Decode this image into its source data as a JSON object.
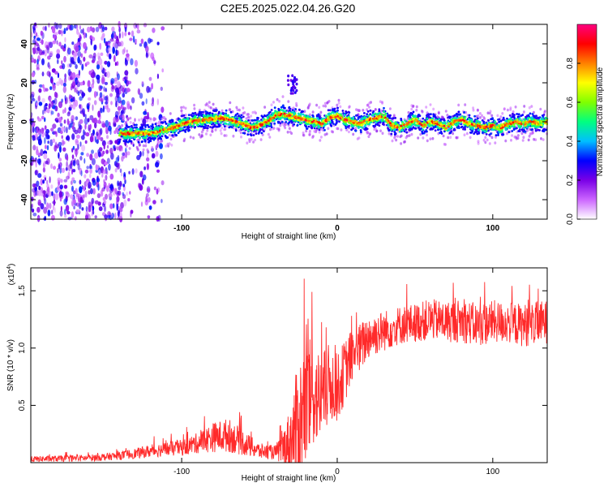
{
  "figure": {
    "title": "C2E5.2025.022.04.26.G20"
  },
  "chart_data": [
    {
      "type": "heatmap",
      "title": "C2E5.2025.022.04.26.G20",
      "xlabel": "Height of straight line (km)",
      "ylabel": "Frequency (Hz)",
      "xlim": [
        -197,
        135
      ],
      "ylim": [
        -50,
        50
      ],
      "x_ticks": [
        -100,
        0,
        100
      ],
      "y_ticks": [
        -40,
        -20,
        0,
        20,
        40
      ],
      "colorbar": {
        "label": "Normalized spectral amplitude",
        "range": [
          0,
          1
        ],
        "ticks": [
          "0.0",
          "0.2",
          "0.4",
          "0.6",
          "0.8"
        ],
        "colors": [
          "#ffffff",
          "#cc66ff",
          "#7a00e6",
          "#0000ff",
          "#00bfff",
          "#00ff80",
          "#80ff00",
          "#ffff00",
          "#ff8000",
          "#ff0000",
          "#ff0080"
        ]
      },
      "ridge": {
        "x": [
          -135,
          -120,
          -105,
          -95,
          -85,
          -75,
          -65,
          -55,
          -50,
          -45,
          -40,
          -35,
          -30,
          -25,
          -20,
          -15,
          -10,
          -5,
          0,
          5,
          10,
          15,
          20,
          25,
          30,
          35,
          40,
          45,
          50,
          55,
          60,
          65,
          70,
          75,
          80,
          85,
          90,
          95,
          100,
          105,
          110,
          115,
          120,
          125,
          130,
          135
        ],
        "y": [
          -6,
          -6,
          -3,
          0,
          1,
          2,
          0,
          -3,
          -2,
          0,
          3,
          4,
          3,
          2,
          1,
          0,
          -1,
          2,
          3,
          1,
          0,
          -1,
          1,
          2,
          3,
          -2,
          -3,
          -1,
          1,
          -2,
          0,
          -1,
          -3,
          0,
          1,
          -1,
          -2,
          -3,
          -2,
          -3,
          -1,
          0,
          -1,
          0,
          -1,
          0
        ]
      }
    },
    {
      "type": "line",
      "xlabel": "Height of straight line (km)",
      "ylabel": "SNR (10 * v/v)",
      "y_multiplier": "(x10^4)",
      "xlim": [
        -197,
        135
      ],
      "ylim": [
        0,
        17000
      ],
      "x_ticks": [
        -100,
        0,
        100
      ],
      "y_ticks": [
        "0.5",
        "1.0",
        "1.5"
      ],
      "y_tick_values": [
        5000,
        10000,
        15000
      ],
      "color": "#ff2a2a",
      "envelope": {
        "x": [
          -197,
          -160,
          -140,
          -125,
          -115,
          -100,
          -90,
          -80,
          -70,
          -60,
          -50,
          -40,
          -35,
          -30,
          -25,
          -20,
          -15,
          -10,
          -5,
          0,
          5,
          10,
          15,
          20,
          30,
          40,
          50,
          60,
          70,
          80,
          90,
          100,
          110,
          120,
          135
        ],
        "mean": [
          300,
          400,
          600,
          900,
          1100,
          1300,
          1700,
          2200,
          2400,
          1700,
          1000,
          900,
          1200,
          2000,
          3500,
          5000,
          6000,
          5500,
          7000,
          6500,
          8000,
          9500,
          10000,
          11000,
          11500,
          12000,
          12200,
          12500,
          12300,
          12400,
          12000,
          12300,
          12200,
          12000,
          12300
        ],
        "amp": [
          250,
          300,
          350,
          500,
          600,
          700,
          900,
          1300,
          1500,
          1100,
          700,
          600,
          1500,
          3000,
          5500,
          6000,
          4500,
          4000,
          3500,
          3000,
          2800,
          2300,
          2200,
          2000,
          1800,
          1700,
          1700,
          1800,
          1800,
          1900,
          1900,
          1900,
          1800,
          1900,
          1900
        ]
      }
    }
  ],
  "x_unit_label": "(km)"
}
